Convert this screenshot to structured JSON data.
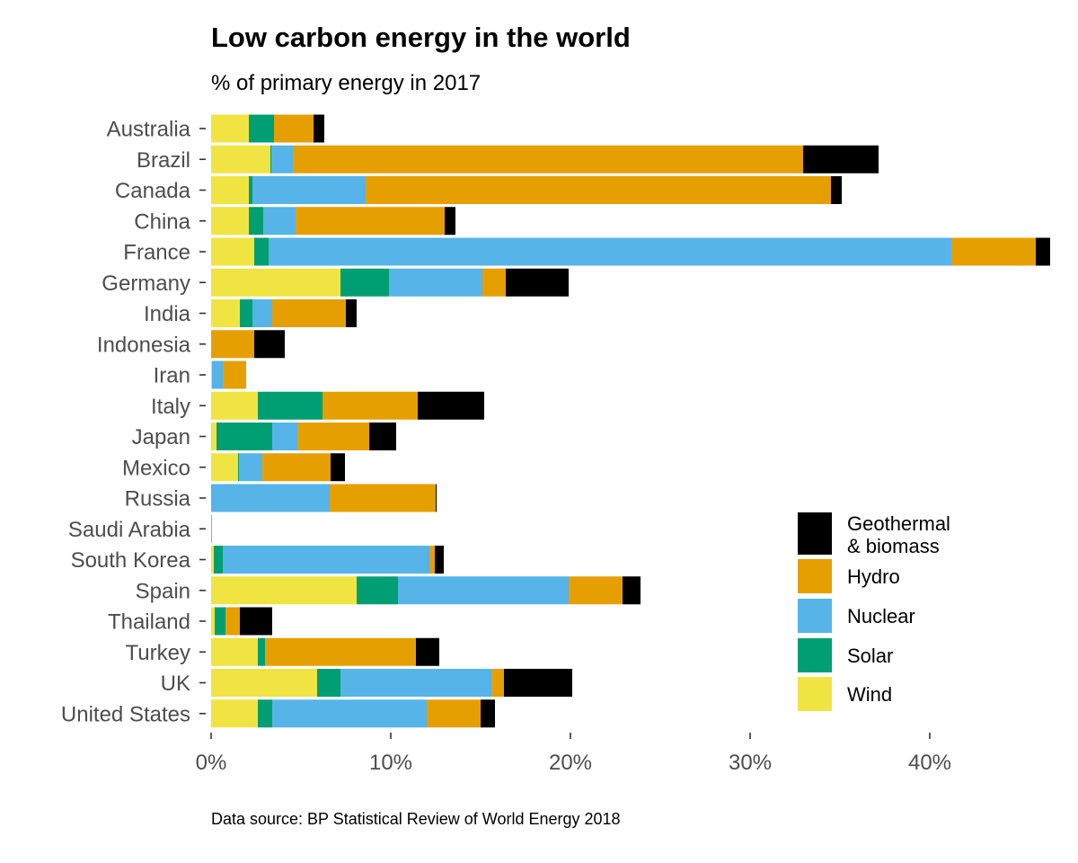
{
  "chart_data": {
    "type": "bar",
    "orientation": "horizontal",
    "stacked": true,
    "title": "Low carbon energy in the world",
    "subtitle": "% of primary energy in 2017",
    "caption": "Data source: BP Statistical Review of World Energy 2018",
    "xlabel": "",
    "ylabel": "",
    "xlim": [
      0,
      46.5
    ],
    "x_ticks": [
      0,
      10,
      20,
      30,
      40
    ],
    "x_tick_labels": [
      "0%",
      "10%",
      "20%",
      "30%",
      "40%"
    ],
    "grid": false,
    "legend_position": "bottom-right",
    "categories": [
      "Australia",
      "Brazil",
      "Canada",
      "China",
      "France",
      "Germany",
      "India",
      "Indonesia",
      "Iran",
      "Italy",
      "Japan",
      "Mexico",
      "Russia",
      "Saudi Arabia",
      "South Korea",
      "Spain",
      "Thailand",
      "Turkey",
      "UK",
      "United States"
    ],
    "series": [
      {
        "name": "Wind",
        "color": "#F0E442",
        "values": [
          2.1,
          3.3,
          2.1,
          2.1,
          2.4,
          7.2,
          1.6,
          0.0,
          0.05,
          2.6,
          0.3,
          1.5,
          0.0,
          0.0,
          0.15,
          8.1,
          0.2,
          2.6,
          5.9,
          2.6
        ]
      },
      {
        "name": "Solar",
        "color": "#009E73",
        "values": [
          1.4,
          0.05,
          0.2,
          0.8,
          0.8,
          2.7,
          0.7,
          0.0,
          0.0,
          3.6,
          3.1,
          0.05,
          0.0,
          0.03,
          0.5,
          2.3,
          0.6,
          0.4,
          1.3,
          0.8
        ]
      },
      {
        "name": "Nuclear",
        "color": "#56B4E9",
        "values": [
          0.0,
          1.2,
          6.3,
          1.8,
          38.0,
          5.2,
          1.1,
          0.0,
          0.6,
          0.0,
          1.4,
          1.3,
          6.6,
          0.0,
          11.5,
          9.5,
          0.0,
          0.0,
          8.4,
          8.6
        ]
      },
      {
        "name": "Hydro",
        "color": "#E69F00",
        "values": [
          2.2,
          28.4,
          25.9,
          8.3,
          4.7,
          1.3,
          4.1,
          2.4,
          1.3,
          5.3,
          4.0,
          3.8,
          5.9,
          0.0,
          0.3,
          3.0,
          0.8,
          8.4,
          0.7,
          3.0
        ]
      },
      {
        "name": "Geothermal\n& biomass",
        "color": "#000000",
        "values": [
          0.6,
          4.2,
          0.6,
          0.6,
          0.8,
          3.5,
          0.6,
          1.7,
          0.0,
          3.7,
          1.5,
          0.8,
          0.05,
          0.0,
          0.5,
          1.0,
          1.8,
          1.3,
          3.8,
          0.8
        ]
      }
    ]
  }
}
